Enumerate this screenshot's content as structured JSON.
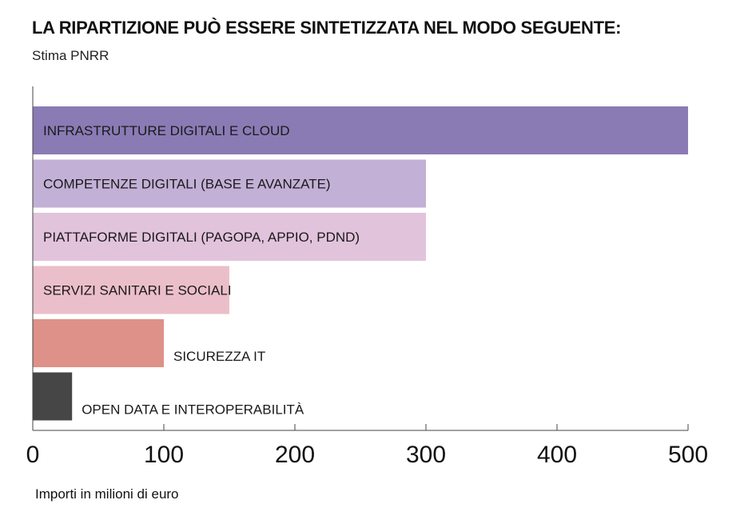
{
  "title": "LA RIPARTIZIONE PUÒ ESSERE SINTETIZZATA NEL MODO SEGUENTE:",
  "subtitle": "Stima PNRR",
  "chart_data": {
    "type": "bar",
    "orientation": "horizontal",
    "categories": [
      "INFRASTRUTTURE DIGITALI E CLOUD",
      "COMPETENZE DIGITALI (BASE E AVANZATE)",
      "PIATTAFORME DIGITALI (PAGOPA, APPIO, PDND)",
      "SERVIZI SANITARI E SOCIALI",
      "SICUREZZA IT",
      "OPEN DATA E INTEROPERABILITÀ"
    ],
    "values": [
      500,
      300,
      300,
      150,
      100,
      30
    ],
    "colors": [
      "#8a7bb5",
      "#c3b0d6",
      "#e2c3dc",
      "#ebbfca",
      "#de9188",
      "#464646"
    ],
    "xlabel": "Importi in milioni di euro",
    "ylabel": "",
    "xlim": [
      0,
      500
    ],
    "xticks": [
      0,
      100,
      200,
      300,
      400,
      500
    ],
    "grid": false,
    "legend": "none"
  }
}
